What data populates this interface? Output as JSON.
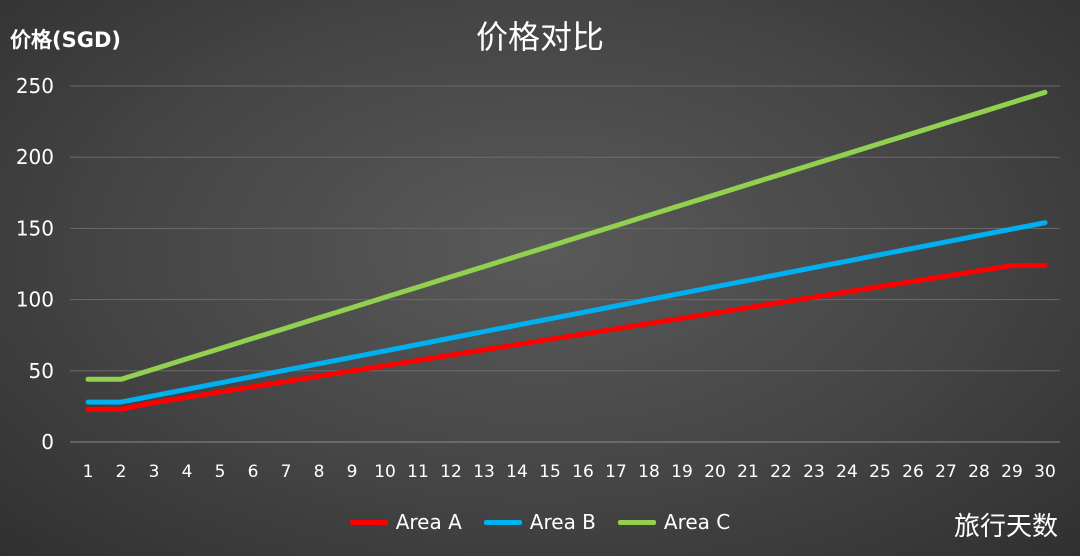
{
  "chart_data": {
    "type": "line",
    "title": "价格对比",
    "ylabel": "价格(SGD)",
    "xlabel": "旅行天数",
    "x": [
      1,
      2,
      3,
      4,
      5,
      6,
      7,
      8,
      9,
      10,
      11,
      12,
      13,
      14,
      15,
      16,
      17,
      18,
      19,
      20,
      21,
      22,
      23,
      24,
      25,
      26,
      27,
      28,
      29,
      30
    ],
    "ylim": [
      0,
      250
    ],
    "yticks": [
      0,
      50,
      100,
      150,
      200,
      250
    ],
    "grid": true,
    "legend_position": "bottom",
    "series": [
      {
        "name": "Area A",
        "color": "#ff0000",
        "values": [
          23,
          23,
          27.7,
          31.4,
          35.1,
          38.8,
          42.5,
          46.2,
          49.9,
          53.6,
          57.3,
          61,
          64.7,
          68.4,
          72.1,
          75.8,
          79.5,
          83.2,
          86.9,
          90.6,
          94.3,
          98,
          101.7,
          105.4,
          109.1,
          112.8,
          116.5,
          120.2,
          123.9,
          124
        ]
      },
      {
        "name": "Area B",
        "color": "#00b0f0",
        "values": [
          28,
          28,
          32.5,
          37,
          41.5,
          46,
          50.5,
          55,
          59.5,
          64,
          68.5,
          73,
          77.5,
          82,
          86.5,
          91,
          95.5,
          100,
          104.5,
          109,
          113.5,
          118,
          122.5,
          127,
          131.5,
          136,
          140.5,
          145,
          149.5,
          154
        ]
      },
      {
        "name": "Area C",
        "color": "#92d050",
        "values": [
          44,
          44,
          51.2,
          58.4,
          65.6,
          72.8,
          80,
          87.2,
          94.4,
          101.6,
          108.8,
          116,
          123.2,
          130.4,
          137.6,
          144.8,
          152,
          159.2,
          166.4,
          173.6,
          180.8,
          188,
          195.2,
          202.4,
          209.6,
          216.8,
          224,
          231.2,
          238.4,
          245.6
        ]
      }
    ]
  }
}
